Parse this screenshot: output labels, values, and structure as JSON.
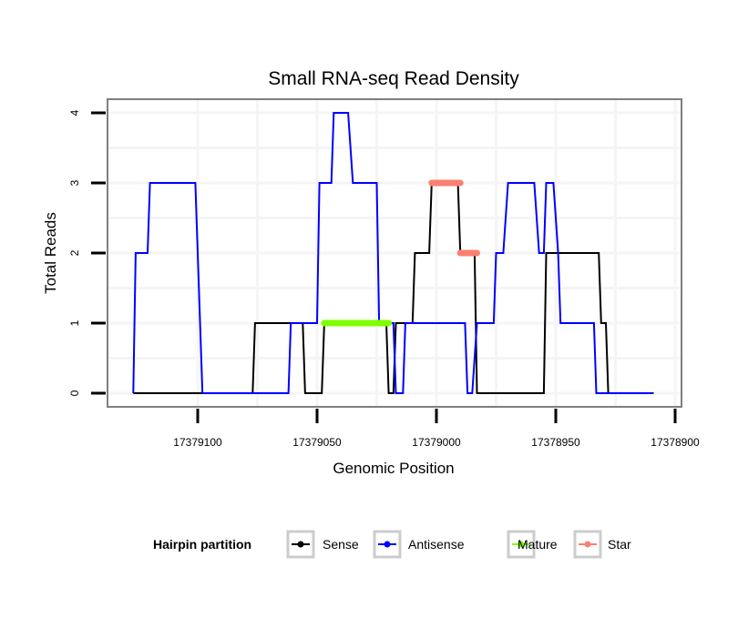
{
  "chart_data": {
    "type": "line",
    "title": "Small RNA-seq Read Density",
    "xlabel": "Genomic Position",
    "ylabel": "Total Reads",
    "x_reversed": true,
    "xlim": [
      17379127,
      17378887
    ],
    "ylim": [
      -0.18,
      4.18
    ],
    "xticks": [
      17379100,
      17379050,
      17379000,
      17378950,
      17378900
    ],
    "xtick_labels": [
      "17379100",
      "17379050",
      "17379000",
      "17378950",
      "17378900"
    ],
    "yticks": [
      0,
      1,
      2,
      3,
      4
    ],
    "ytick_labels": [
      "0",
      "1",
      "2",
      "3",
      "4"
    ],
    "grid": true,
    "legend": {
      "title": "Hairpin partition",
      "placement": "bottom",
      "entries": [
        "Sense",
        "Antisense",
        "Mature",
        "Star"
      ]
    },
    "series": [
      {
        "name": "Sense",
        "color": "#000000",
        "points": [
          [
            17379127,
            0
          ],
          [
            17379077,
            0
          ],
          [
            17379076,
            1
          ],
          [
            17379056,
            1
          ],
          [
            17379055,
            0
          ],
          [
            17379048,
            0
          ],
          [
            17379047,
            1
          ],
          [
            17379021,
            1
          ],
          [
            17379020,
            0
          ],
          [
            17379018,
            0
          ],
          [
            17379017,
            1
          ],
          [
            17379010,
            1
          ],
          [
            17379009,
            2
          ],
          [
            17379003,
            2
          ],
          [
            17379002,
            3
          ],
          [
            17378991,
            3
          ],
          [
            17378990,
            2
          ],
          [
            17378984,
            2
          ],
          [
            17378983,
            0
          ],
          [
            17378955,
            0
          ],
          [
            17378954,
            2
          ],
          [
            17378932,
            2
          ],
          [
            17378931,
            1
          ],
          [
            17378929,
            1
          ],
          [
            17378928,
            0
          ],
          [
            17378909,
            0
          ]
        ]
      },
      {
        "name": "Antisense",
        "color": "#0000ff",
        "points": [
          [
            17379127,
            0
          ],
          [
            17379126,
            2
          ],
          [
            17379121,
            2
          ],
          [
            17379120,
            3
          ],
          [
            17379101,
            3
          ],
          [
            17379098,
            0
          ],
          [
            17379062,
            0
          ],
          [
            17379061,
            1
          ],
          [
            17379050,
            1
          ],
          [
            17379049,
            3
          ],
          [
            17379044,
            3
          ],
          [
            17379043,
            4
          ],
          [
            17379037,
            4
          ],
          [
            17379035,
            3
          ],
          [
            17379025,
            3
          ],
          [
            17379024,
            1
          ],
          [
            17379018,
            1
          ],
          [
            17379017,
            0
          ],
          [
            17379014,
            0
          ],
          [
            17379013,
            1
          ],
          [
            17378988,
            1
          ],
          [
            17378987,
            0
          ],
          [
            17378985,
            0
          ],
          [
            17378983,
            1
          ],
          [
            17378976,
            1
          ],
          [
            17378975,
            2
          ],
          [
            17378972,
            2
          ],
          [
            17378970,
            3
          ],
          [
            17378959,
            3
          ],
          [
            17378957,
            2
          ],
          [
            17378955,
            2
          ],
          [
            17378954,
            3
          ],
          [
            17378951,
            3
          ],
          [
            17378949,
            2
          ],
          [
            17378948,
            1
          ],
          [
            17378934,
            1
          ],
          [
            17378933,
            0
          ],
          [
            17378909,
            0
          ]
        ]
      },
      {
        "name": "Mature",
        "color": "#7fff00",
        "points": [
          [
            17379047,
            1
          ],
          [
            17379020,
            1
          ]
        ]
      },
      {
        "name": "Star",
        "color": "#fa8072",
        "segments": [
          [
            [
              17379002,
              3
            ],
            [
              17378990,
              3
            ]
          ],
          [
            [
              17378990,
              2
            ],
            [
              17378983,
              2
            ]
          ]
        ]
      }
    ]
  }
}
